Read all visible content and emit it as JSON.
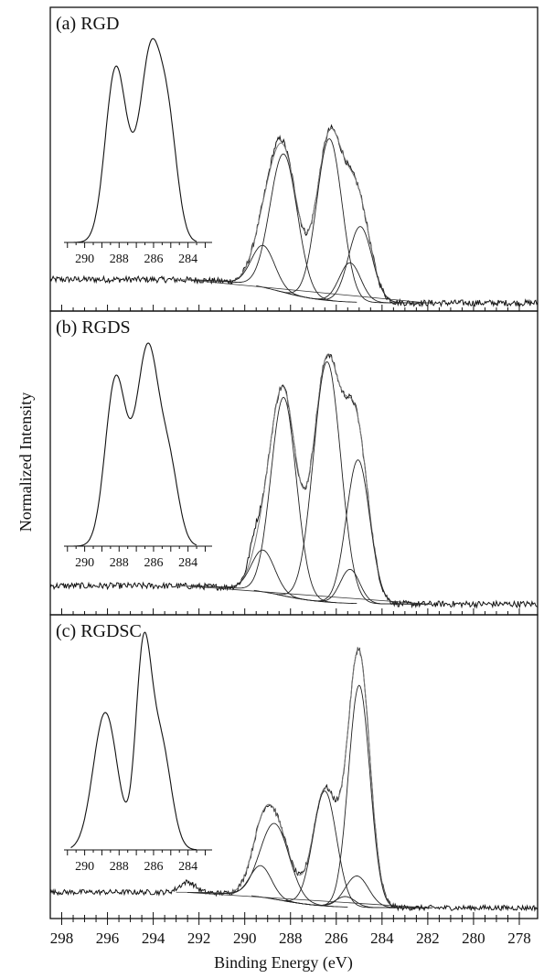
{
  "figure": {
    "xlabel": "Binding Energy (eV)",
    "ylabel": "Normalized Intensity",
    "x_ticks": [
      298,
      296,
      294,
      292,
      290,
      288,
      286,
      284,
      282,
      280,
      278
    ]
  },
  "chart_data": [
    {
      "type": "line",
      "title": "(a) RGD",
      "xlabel": "Binding Energy (eV)",
      "ylabel": "Normalized Intensity",
      "xlim": [
        298.5,
        277.2
      ],
      "x_ticks": [
        298,
        296,
        294,
        292,
        290,
        288,
        286,
        284,
        282,
        280,
        278
      ],
      "grid": false,
      "baseline": {
        "left": 0.1,
        "right": 0.01
      },
      "noise": 0.012,
      "envelope_extra": [
        288.6,
        0.02,
        0.6
      ],
      "components": [
        {
          "center": 289.2,
          "height": 0.16,
          "fwhm": 1.2
        },
        {
          "center": 288.3,
          "height": 0.53,
          "fwhm": 1.4
        },
        {
          "center": 286.3,
          "height": 0.62,
          "fwhm": 1.3
        },
        {
          "center": 285.4,
          "height": 0.15,
          "fwhm": 1.1
        },
        {
          "center": 284.95,
          "height": 0.29,
          "fwhm": 1.2
        }
      ],
      "inset": {
        "x_ticks": [
          290,
          288,
          286,
          284
        ],
        "xlim": [
          291.2,
          282.6
        ],
        "peaks": [
          {
            "center": 288.2,
            "height": 0.88,
            "width": 0.6
          },
          {
            "center": 286.2,
            "height": 0.86,
            "width": 0.55
          },
          {
            "center": 285.2,
            "height": 0.62,
            "width": 0.55
          },
          {
            "center": 287.1,
            "height": 0.18,
            "width": 0.5
          }
        ]
      }
    },
    {
      "type": "line",
      "title": "(b) RGDS",
      "xlabel": "Binding Energy (eV)",
      "ylabel": "Normalized Intensity",
      "xlim": [
        298.5,
        277.2
      ],
      "x_ticks": [
        298,
        296,
        294,
        292,
        290,
        288,
        286,
        284,
        282,
        280,
        278
      ],
      "grid": false,
      "baseline": {
        "left": 0.09,
        "right": 0.02
      },
      "noise": 0.012,
      "envelope_extra": [
        289.6,
        0.06,
        0.5
      ],
      "components": [
        {
          "center": 289.2,
          "height": 0.16,
          "fwhm": 1.2
        },
        {
          "center": 288.3,
          "height": 0.76,
          "fwhm": 1.3
        },
        {
          "center": 286.4,
          "height": 0.92,
          "fwhm": 1.4
        },
        {
          "center": 285.4,
          "height": 0.13,
          "fwhm": 1.0
        },
        {
          "center": 285.05,
          "height": 0.55,
          "fwhm": 1.2
        }
      ],
      "inset": {
        "x_ticks": [
          290,
          288,
          286,
          284
        ],
        "xlim": [
          291.2,
          282.6
        ],
        "peaks": [
          {
            "center": 288.2,
            "height": 0.85,
            "width": 0.6
          },
          {
            "center": 286.3,
            "height": 0.95,
            "width": 0.6
          },
          {
            "center": 285.1,
            "height": 0.4,
            "width": 0.55
          },
          {
            "center": 287.1,
            "height": 0.15,
            "width": 0.5
          }
        ]
      }
    },
    {
      "type": "line",
      "title": "(c) RGDSC",
      "xlabel": "Binding Energy (eV)",
      "ylabel": "Normalized Intensity",
      "xlim": [
        298.5,
        277.2
      ],
      "x_ticks": [
        298,
        296,
        294,
        292,
        290,
        288,
        286,
        284,
        282,
        280,
        278
      ],
      "grid": false,
      "baseline": {
        "left": 0.08,
        "right": 0.02
      },
      "noise": 0.01,
      "envelope_extra": [
        292.5,
        0.04,
        0.8
      ],
      "components": [
        {
          "center": 289.3,
          "height": 0.12,
          "fwhm": 1.1
        },
        {
          "center": 288.7,
          "height": 0.29,
          "fwhm": 1.5
        },
        {
          "center": 286.5,
          "height": 0.44,
          "fwhm": 1.2
        },
        {
          "center": 285.6,
          "height": 0.04,
          "fwhm": 1.0
        },
        {
          "center": 285.0,
          "height": 0.85,
          "fwhm": 1.1
        },
        {
          "center": 285.1,
          "height": 0.12,
          "fwhm": 1.2
        }
      ],
      "inset": {
        "x_ticks": [
          290,
          288,
          286,
          284
        ],
        "xlim": [
          291.2,
          282.6
        ],
        "peaks": [
          {
            "center": 288.8,
            "height": 0.7,
            "width": 0.7
          },
          {
            "center": 286.6,
            "height": 0.95,
            "width": 0.45
          },
          {
            "center": 285.6,
            "height": 0.55,
            "width": 0.6
          }
        ]
      }
    }
  ]
}
